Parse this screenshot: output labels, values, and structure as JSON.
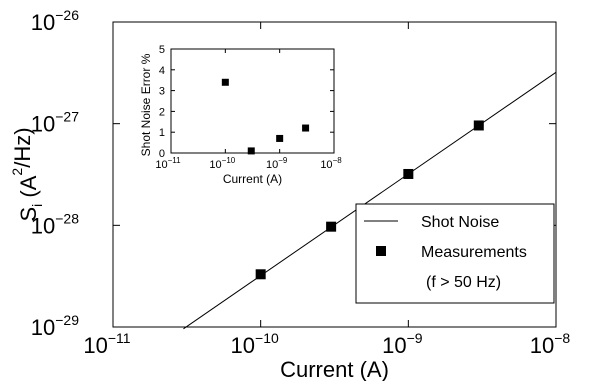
{
  "chart_data": [
    {
      "type": "line",
      "xlabel": "Current (A)",
      "ylabel": "S_i (A^2/Hz)",
      "xscale": "log",
      "yscale": "log",
      "xlim": [
        1e-11,
        1e-08
      ],
      "ylim": [
        1e-29,
        1e-26
      ],
      "x_ticks": [
        "10^-11",
        "10^-10",
        "10^-9",
        "10^-8"
      ],
      "y_ticks": [
        "10^-29",
        "10^-28",
        "10^-27",
        "10^-26"
      ],
      "grid": false,
      "legend_position": "bottom-right",
      "series": [
        {
          "name": "Shot Noise",
          "style": "line",
          "color": "#000000",
          "x": [
            3e-11,
            1e-08
          ],
          "y": [
            9.6e-30,
            3.2e-27
          ]
        },
        {
          "name": "Measurements",
          "style": "square-markers",
          "color": "#000000",
          "x": [
            1e-10,
            3e-10,
            1e-09,
            3e-09
          ],
          "y": [
            3.3e-29,
            9.7e-29,
            3.2e-28,
            9.6e-28
          ]
        }
      ],
      "legend": {
        "entries": [
          "Shot Noise",
          "Measurements",
          "(f > 50 Hz)"
        ]
      }
    },
    {
      "type": "scatter",
      "xlabel": "Current (A)",
      "ylabel": "Shot Noise Error %",
      "xscale": "log",
      "xlim": [
        1e-11,
        1e-08
      ],
      "ylim": [
        0,
        5
      ],
      "x_ticks": [
        "10^-11",
        "10^-10",
        "10^-9",
        "10^-8"
      ],
      "y_ticks": [
        "0",
        "1",
        "2",
        "3",
        "4",
        "5"
      ],
      "series": [
        {
          "style": "square-markers",
          "color": "#000000",
          "x": [
            1e-10,
            3e-10,
            1e-09,
            3e-09
          ],
          "y": [
            3.4,
            0.1,
            0.7,
            1.2
          ]
        }
      ]
    }
  ]
}
